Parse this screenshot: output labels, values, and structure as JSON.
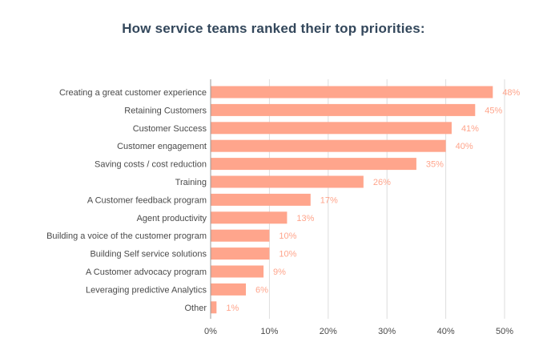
{
  "chart_data": {
    "type": "bar",
    "orientation": "horizontal",
    "title": "How service teams ranked their top priorities:",
    "categories": [
      "Creating a great customer experience",
      "Retaining Customers",
      "Customer Success",
      "Customer engagement",
      "Saving costs / cost reduction",
      "Training",
      "A Customer feedback program",
      "Agent productivity",
      "Building a voice of the customer program",
      "Building Self service solutions",
      "A Customer advocacy program",
      "Leveraging predictive Analytics",
      "Other"
    ],
    "values": [
      48,
      45,
      41,
      40,
      35,
      26,
      17,
      13,
      10,
      10,
      9,
      6,
      1
    ],
    "value_labels": [
      "48%",
      "45%",
      "41%",
      "40%",
      "35%",
      "26%",
      "17%",
      "13%",
      "10%",
      "10%",
      "9%",
      "6%",
      "1%"
    ],
    "xticks": [
      0,
      10,
      20,
      30,
      40,
      50
    ],
    "xtick_labels": [
      "0%",
      "10%",
      "20%",
      "30%",
      "40%",
      "50%"
    ],
    "xlim": [
      0,
      50
    ],
    "xlabel": "",
    "ylabel": "",
    "grid": "vertical",
    "legend": "none",
    "colors": {
      "bar": "#ffa58c",
      "value_label": "#ffa58c",
      "title": "#33475b",
      "grid": "#dddddd",
      "axis": "#999999"
    }
  }
}
